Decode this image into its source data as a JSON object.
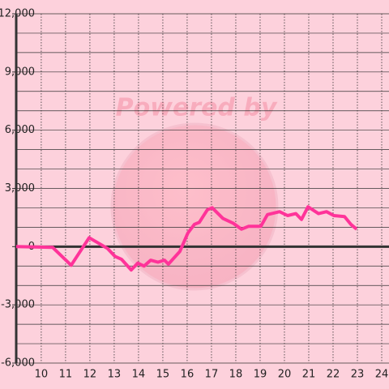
{
  "chart_data": {
    "type": "line",
    "watermark": "Powered by",
    "x": [
      8.97,
      10.47,
      11.23,
      11.97,
      12.37,
      12.73,
      13.03,
      13.3,
      13.7,
      13.97,
      14.23,
      14.5,
      14.8,
      15.07,
      15.23,
      15.7,
      16.03,
      16.3,
      16.5,
      16.83,
      17.03,
      17.47,
      17.9,
      18.23,
      18.53,
      19.03,
      19.3,
      19.8,
      20.13,
      20.47,
      20.7,
      20.97,
      21.4,
      21.73,
      22.03,
      22.47,
      22.73,
      22.97
    ],
    "values": [
      0,
      -40,
      -960,
      460,
      170,
      -100,
      -500,
      -650,
      -1200,
      -850,
      -1000,
      -700,
      -800,
      -700,
      -900,
      -250,
      700,
      1150,
      1250,
      1900,
      2000,
      1450,
      1200,
      900,
      1050,
      1050,
      1650,
      1800,
      1600,
      1700,
      1400,
      2050,
      1700,
      1800,
      1600,
      1550,
      1150,
      900
    ],
    "color": "#ff3399",
    "xlim": [
      8.97,
      24.3
    ],
    "xticks": [
      10,
      11,
      12,
      13,
      14,
      15,
      16,
      17,
      18,
      19,
      20,
      21,
      22,
      23,
      24
    ],
    "ylim": [
      -6000,
      12000
    ],
    "yticks": [
      {
        "value": -6000,
        "label": "-6,000"
      },
      {
        "value": -3000,
        "label": "-3,000"
      },
      0,
      {
        "value": 3000,
        "label": "3,000"
      },
      {
        "value": 6000,
        "label": "6,000"
      },
      {
        "value": 9000,
        "label": "9,000"
      },
      {
        "value": 12000,
        "label": "12,000"
      }
    ],
    "y_minor_ticks": [
      -5000,
      -4000,
      -2000,
      -1000,
      1000,
      2000,
      4000,
      5000,
      7000,
      8000,
      10000,
      11000
    ],
    "grid": true
  }
}
